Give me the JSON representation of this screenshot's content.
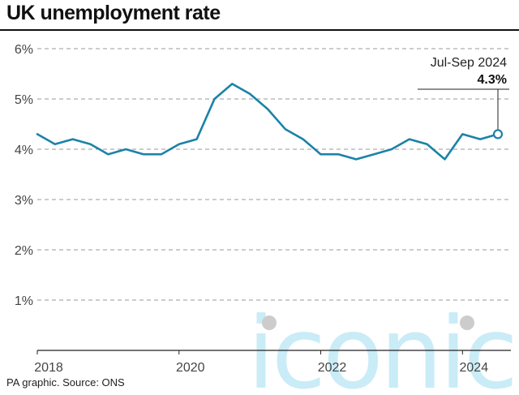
{
  "title": "UK unemployment rate",
  "source": "PA graphic. Source: ONS",
  "watermark": "iconic",
  "colors": {
    "line": "#1b82a8",
    "grid": "#999999",
    "text": "#444444",
    "watermark": "#c9ecf7"
  },
  "chart_data": {
    "type": "line",
    "title": "UK unemployment rate",
    "xlabel": "",
    "ylabel": "",
    "ylim": [
      0,
      6
    ],
    "xlim": [
      2018,
      2024.5
    ],
    "y_ticks": [
      {
        "value": 1,
        "label": "1%"
      },
      {
        "value": 2,
        "label": "2%"
      },
      {
        "value": 3,
        "label": "3%"
      },
      {
        "value": 4,
        "label": "4%"
      },
      {
        "value": 5,
        "label": "5%"
      },
      {
        "value": 6,
        "label": "6%"
      }
    ],
    "x_ticks": [
      {
        "value": 2018,
        "label": "2018"
      },
      {
        "value": 2020,
        "label": "2020"
      },
      {
        "value": 2022,
        "label": "2022"
      },
      {
        "value": 2024,
        "label": "2024"
      }
    ],
    "grid": true,
    "series": [
      {
        "x": [
          2018.0,
          2018.25,
          2018.5,
          2018.75,
          2019.0,
          2019.25,
          2019.5,
          2019.75,
          2020.0,
          2020.25,
          2020.5,
          2020.75,
          2021.0,
          2021.25,
          2021.5,
          2021.75,
          2022.0,
          2022.25,
          2022.5,
          2022.75,
          2023.0,
          2023.25,
          2023.5,
          2023.75,
          2024.0,
          2024.25,
          2024.5
        ],
        "values": [
          4.3,
          4.1,
          4.2,
          4.1,
          3.9,
          4.0,
          3.9,
          3.9,
          4.1,
          4.2,
          5.0,
          5.3,
          5.1,
          4.8,
          4.4,
          4.2,
          3.9,
          3.9,
          3.8,
          3.9,
          4.0,
          4.2,
          4.1,
          3.8,
          4.3,
          4.2,
          4.3
        ]
      }
    ],
    "annotation": {
      "period": "Jul-Sep 2024",
      "value_label": "4.3%"
    }
  }
}
